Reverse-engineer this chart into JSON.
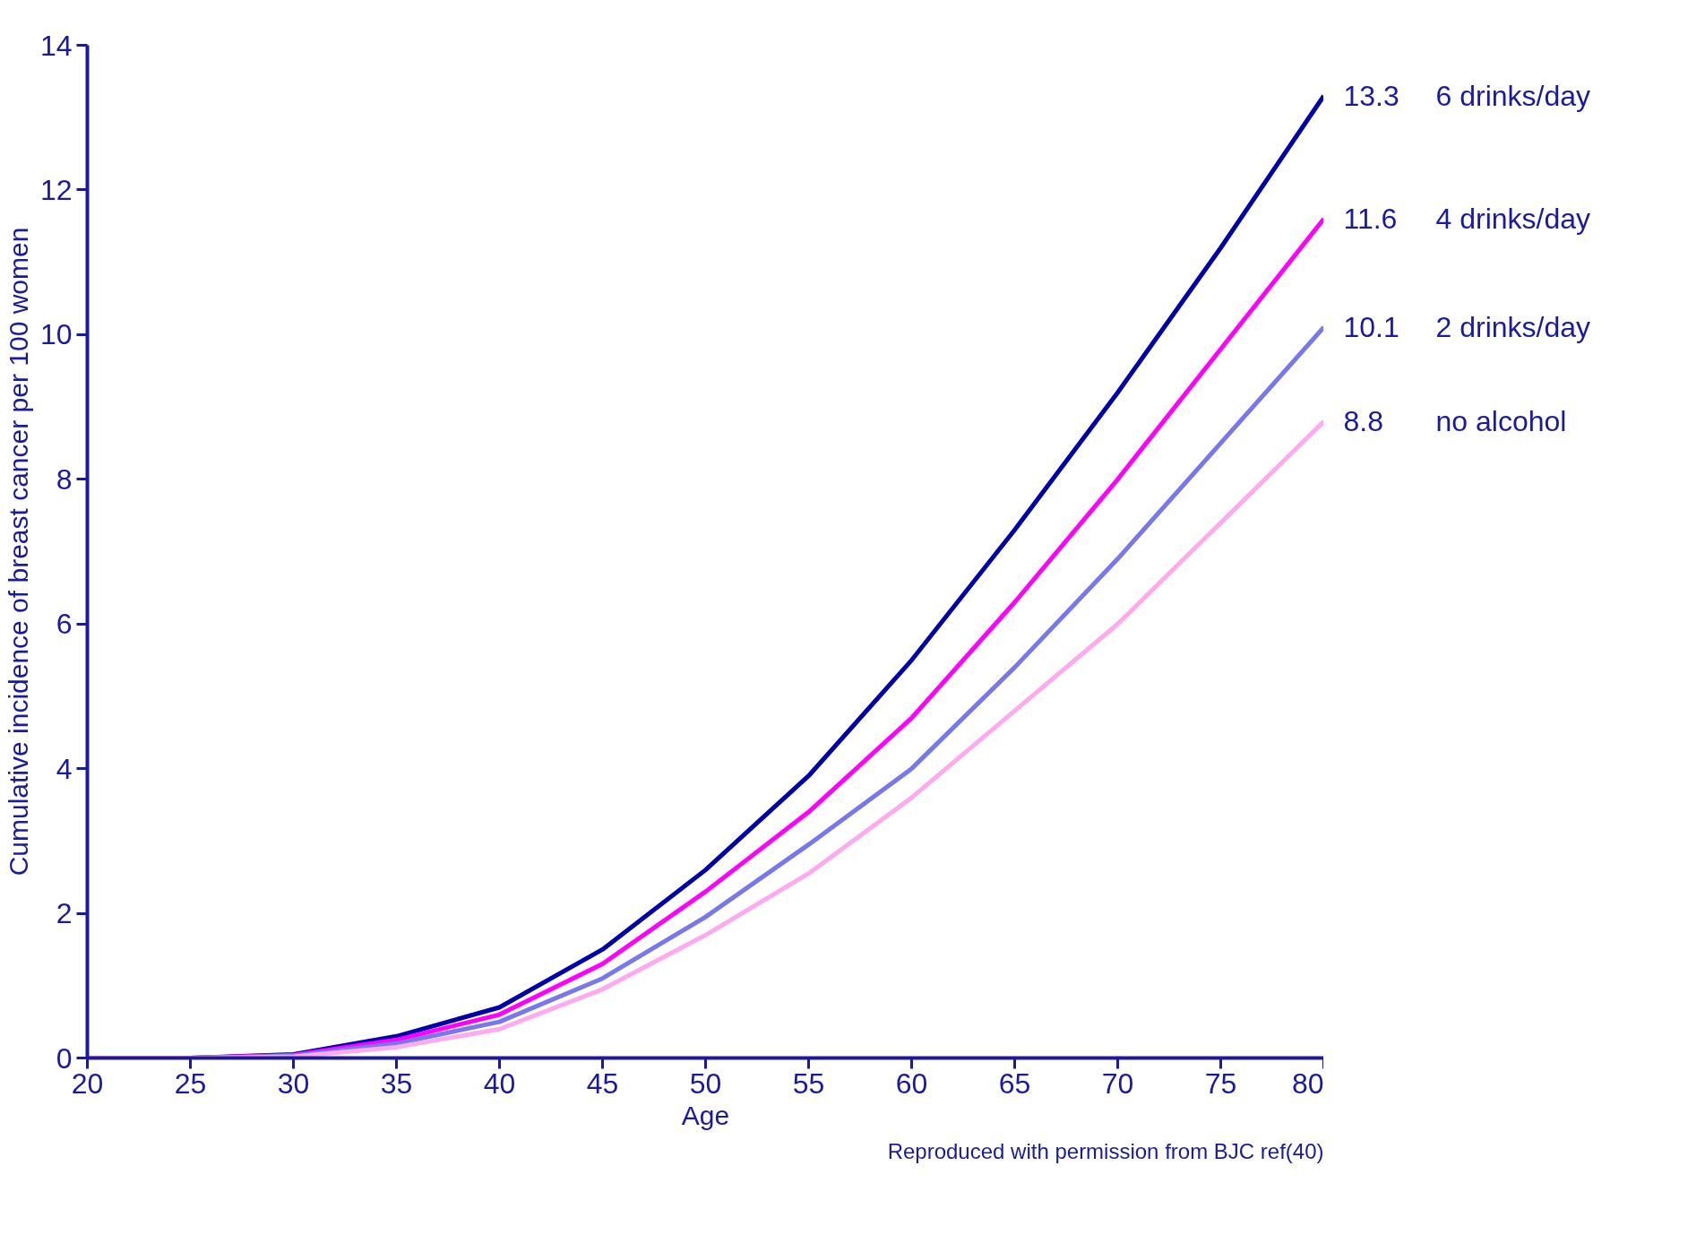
{
  "chart_data": {
    "type": "line",
    "xlabel": "Age",
    "ylabel": "Cumulative incidence of breast cancer per 100 women",
    "annotations": [
      "Reproduced with permission from BJC ref(40)"
    ],
    "x": [
      20,
      25,
      30,
      35,
      40,
      45,
      50,
      55,
      60,
      65,
      70,
      75,
      80
    ],
    "xlim": [
      20,
      80
    ],
    "xticks": [
      20,
      25,
      30,
      35,
      40,
      45,
      50,
      55,
      60,
      65,
      70,
      75,
      80
    ],
    "ylim": [
      0,
      14
    ],
    "yticks": [
      0,
      2,
      4,
      6,
      8,
      10,
      12,
      14
    ],
    "grid": false,
    "marker": "none",
    "line_style": "solid",
    "series": [
      {
        "name": "6 drinks/day",
        "color": "#0000aa",
        "values": [
          0,
          0,
          0.05,
          0.3,
          0.7,
          1.5,
          2.6,
          3.9,
          5.5,
          7.3,
          9.2,
          11.2,
          13.3
        ],
        "value_labels": [
          null,
          null,
          null,
          null,
          null,
          null,
          null,
          null,
          null,
          null,
          null,
          null,
          "13.3"
        ]
      },
      {
        "name": "4 drinks/day",
        "color": "#ff00ff",
        "values": [
          0,
          0,
          0.04,
          0.25,
          0.6,
          1.3,
          2.3,
          3.4,
          4.7,
          6.3,
          8.0,
          9.8,
          11.6
        ],
        "value_labels": [
          null,
          null,
          null,
          null,
          null,
          null,
          null,
          null,
          null,
          null,
          null,
          null,
          "11.6"
        ]
      },
      {
        "name": "2 drinks/day",
        "color": "#7777ee",
        "values": [
          0,
          0,
          0.03,
          0.2,
          0.5,
          1.1,
          1.95,
          2.95,
          4.0,
          5.4,
          6.9,
          8.5,
          10.1
        ],
        "value_labels": [
          null,
          null,
          null,
          null,
          null,
          null,
          null,
          null,
          null,
          null,
          null,
          null,
          "10.1"
        ]
      },
      {
        "name": "no alcohol",
        "color": "#ffaaee",
        "values": [
          0,
          0,
          0.02,
          0.15,
          0.4,
          0.95,
          1.7,
          2.55,
          3.6,
          4.8,
          6.0,
          7.4,
          8.8
        ],
        "value_labels": [
          null,
          null,
          null,
          null,
          null,
          null,
          null,
          null,
          null,
          null,
          null,
          null,
          "8.8"
        ]
      }
    ]
  }
}
